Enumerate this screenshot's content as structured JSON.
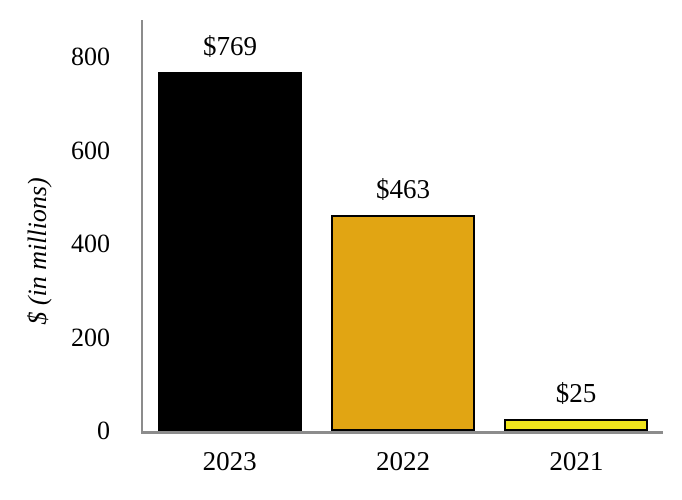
{
  "chart_data": {
    "type": "bar",
    "title": "",
    "categories": [
      "2023",
      "2022",
      "2021"
    ],
    "values": [
      769,
      463,
      25
    ],
    "value_labels": [
      "$769",
      "$463",
      "$25"
    ],
    "bar_colors": [
      "#000000",
      "#E1A513",
      "#EFE41D"
    ],
    "bar_border_color": "#000000",
    "xlabel": "",
    "ylabel": "$ (in millions)",
    "yticks": [
      0,
      200,
      400,
      600,
      800
    ],
    "ylim": [
      0,
      880
    ],
    "grid": false,
    "legend": "none",
    "axis_color": "#8C8C8C",
    "text_color": "#000000",
    "background": "#FFFFFF"
  }
}
